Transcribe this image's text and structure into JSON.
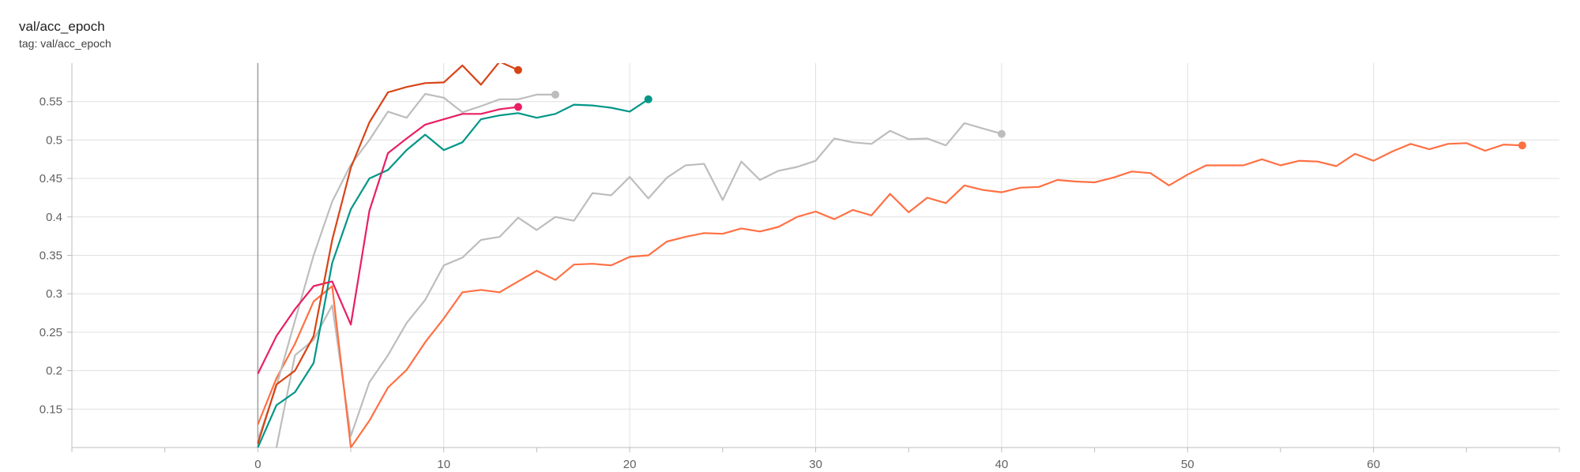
{
  "card": {
    "title": "val/acc_epoch",
    "tag": "tag: val/acc_epoch"
  },
  "chart_data": {
    "type": "line",
    "title": "val/acc_epoch",
    "xlim": [
      -10,
      70
    ],
    "ylim": [
      0.1,
      0.6
    ],
    "x_ticks": [
      0,
      10,
      20,
      30,
      40,
      50,
      60
    ],
    "y_ticks": [
      0.15,
      0.2,
      0.25,
      0.3,
      0.35,
      0.4,
      0.45,
      0.5,
      0.55
    ],
    "grid": true,
    "series": [
      {
        "color": "#bdbdbd",
        "x": [
          1,
          2,
          3,
          4,
          5,
          6,
          7,
          8,
          9,
          10,
          11,
          12,
          13,
          14,
          15,
          16,
          17,
          18,
          19,
          20,
          21,
          22,
          23,
          24,
          25,
          26,
          27,
          28,
          29,
          30,
          31,
          32,
          33,
          34,
          35,
          36,
          37,
          38,
          39,
          40
        ],
        "y": [
          0.1,
          0.22,
          0.24,
          0.285,
          0.115,
          0.185,
          0.22,
          0.262,
          0.292,
          0.337,
          0.347,
          0.37,
          0.374,
          0.399,
          0.383,
          0.4,
          0.395,
          0.431,
          0.428,
          0.452,
          0.424,
          0.451,
          0.467,
          0.469,
          0.422,
          0.472,
          0.448,
          0.46,
          0.465,
          0.473,
          0.502,
          0.497,
          0.495,
          0.512,
          0.501,
          0.502,
          0.493,
          0.522,
          0.515,
          0.508
        ]
      },
      {
        "color": "#ff7043",
        "x": [
          0,
          1,
          2,
          3,
          4,
          5,
          6,
          7,
          8,
          9,
          10,
          11,
          12,
          13,
          14,
          15,
          16,
          17,
          18,
          19,
          20,
          21,
          22,
          23,
          24,
          25,
          26,
          27,
          28,
          29,
          30,
          31,
          32,
          33,
          34,
          35,
          36,
          37,
          38,
          39,
          40,
          41,
          42,
          43,
          44,
          45,
          46,
          47,
          48,
          49,
          50,
          51,
          52,
          53,
          54,
          55,
          56,
          57,
          58,
          59,
          60,
          61,
          62,
          63,
          64,
          65,
          66,
          67,
          68
        ],
        "y": [
          0.13,
          0.19,
          0.235,
          0.29,
          0.31,
          0.1,
          0.135,
          0.178,
          0.201,
          0.237,
          0.268,
          0.302,
          0.305,
          0.302,
          0.316,
          0.33,
          0.318,
          0.338,
          0.339,
          0.337,
          0.348,
          0.35,
          0.368,
          0.374,
          0.379,
          0.378,
          0.385,
          0.381,
          0.387,
          0.4,
          0.407,
          0.397,
          0.409,
          0.402,
          0.43,
          0.406,
          0.425,
          0.418,
          0.441,
          0.435,
          0.432,
          0.438,
          0.439,
          0.448,
          0.446,
          0.445,
          0.451,
          0.459,
          0.457,
          0.441,
          0.455,
          0.467,
          0.467,
          0.467,
          0.475,
          0.467,
          0.473,
          0.472,
          0.466,
          0.482,
          0.473,
          0.485,
          0.495,
          0.488,
          0.495,
          0.496,
          0.486,
          0.494,
          0.493
        ]
      },
      {
        "color": "#bdbdbd",
        "x": [
          0,
          1,
          2,
          3,
          4,
          5,
          6,
          7,
          8,
          9,
          10,
          11,
          12,
          13,
          14,
          15,
          16
        ],
        "y": [
          0.11,
          0.18,
          0.265,
          0.35,
          0.42,
          0.468,
          0.5,
          0.537,
          0.529,
          0.56,
          0.555,
          0.536,
          0.544,
          0.553,
          0.553,
          0.559,
          0.559
        ]
      },
      {
        "color": "#009688",
        "x": [
          0,
          1,
          2,
          3,
          4,
          5,
          6,
          7,
          8,
          9,
          10,
          11,
          12,
          13,
          14,
          15,
          16,
          17,
          18,
          19,
          20,
          21
        ],
        "y": [
          0.1,
          0.155,
          0.172,
          0.21,
          0.34,
          0.41,
          0.45,
          0.461,
          0.487,
          0.507,
          0.487,
          0.497,
          0.527,
          0.532,
          0.535,
          0.529,
          0.534,
          0.546,
          0.545,
          0.542,
          0.537,
          0.553
        ]
      },
      {
        "color": "#e91e63",
        "x": [
          0,
          1,
          2,
          3,
          4,
          5,
          6,
          7,
          8,
          9,
          10,
          11,
          12,
          13,
          14
        ],
        "y": [
          0.196,
          0.245,
          0.28,
          0.31,
          0.316,
          0.26,
          0.408,
          0.483,
          0.502,
          0.52,
          0.527,
          0.534,
          0.534,
          0.54,
          0.543
        ]
      },
      {
        "color": "#d84315",
        "x": [
          0,
          1,
          2,
          3,
          4,
          5,
          6,
          7,
          8,
          9,
          10,
          11,
          12,
          13,
          14
        ],
        "y": [
          0.105,
          0.182,
          0.2,
          0.245,
          0.37,
          0.464,
          0.523,
          0.562,
          0.569,
          0.574,
          0.575,
          0.597,
          0.572,
          0.602,
          0.591
        ]
      }
    ]
  }
}
